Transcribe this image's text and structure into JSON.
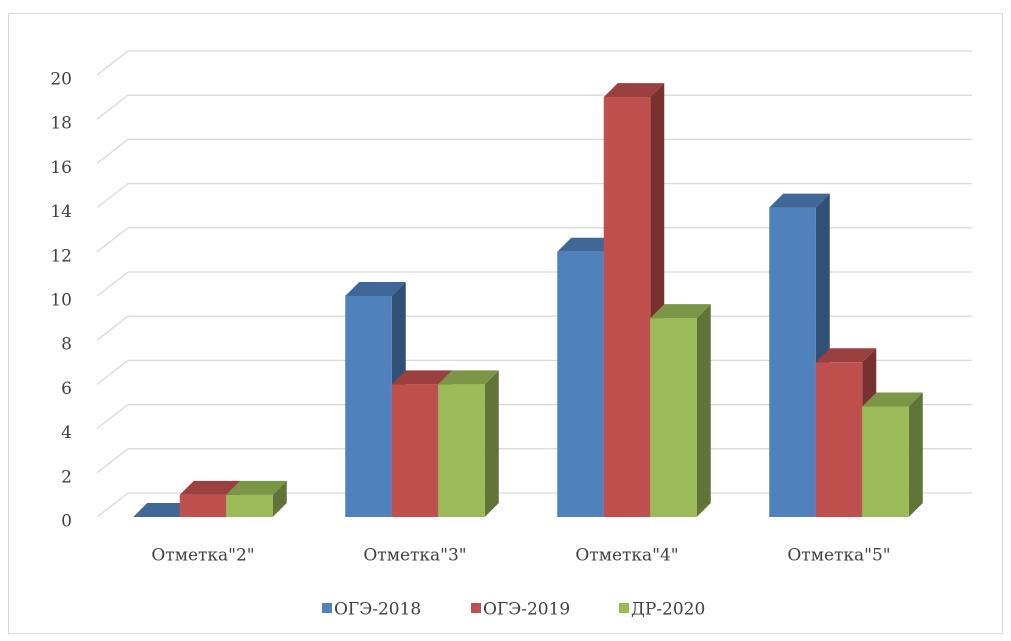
{
  "chart_data": {
    "type": "bar3d",
    "categories": [
      "Отметка\"2\"",
      "Отметка\"3\"",
      "Отметка\"4\"",
      "Отметка\"5\""
    ],
    "series": [
      {
        "name": "ОГЭ-2018",
        "color": "#4f81bd",
        "values": [
          0,
          10,
          12,
          14
        ]
      },
      {
        "name": "ОГЭ-2019",
        "color": "#c0504d",
        "values": [
          1,
          6,
          19,
          7
        ]
      },
      {
        "name": "ДР-2020",
        "color": "#9bbb59",
        "values": [
          1,
          6,
          9,
          5
        ]
      }
    ],
    "ylim": [
      0,
      20
    ],
    "yticks": [
      0,
      2,
      4,
      6,
      8,
      10,
      12,
      14,
      16,
      18,
      20
    ],
    "grid": true,
    "legend": "bottom"
  }
}
